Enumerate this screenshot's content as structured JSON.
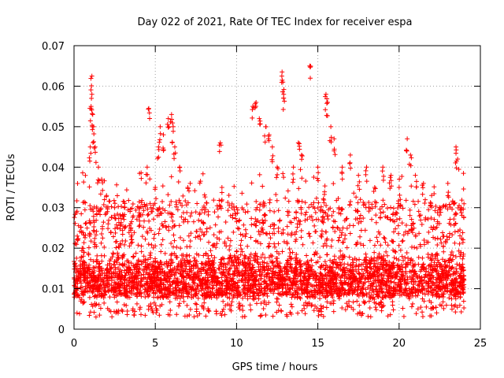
{
  "chart_data": {
    "type": "scatter",
    "title": "Day 022 of 2021, Rate Of TEC Index for receiver espa",
    "xlabel": "GPS time / hours",
    "ylabel": "ROTI / TECUs",
    "xlim": [
      0,
      25
    ],
    "ylim": [
      0,
      0.07
    ],
    "x_ticks": [
      0,
      5,
      10,
      15,
      20,
      25
    ],
    "x_tick_labels": [
      "0",
      "5",
      "10",
      "15",
      "20",
      "25"
    ],
    "y_ticks": [
      0,
      0.01,
      0.02,
      0.03,
      0.04,
      0.05,
      0.06,
      0.07
    ],
    "y_tick_labels": [
      "0",
      "0.01",
      "0.02",
      "0.03",
      "0.04",
      "0.05",
      "0.06",
      "0.07"
    ],
    "grid": true,
    "marker": "plus",
    "color": "#ff0000",
    "series": [
      {
        "name": "ROTI",
        "baseline": {
          "x_range": [
            0,
            24
          ],
          "y_typical": [
            0.005,
            0.02
          ]
        },
        "points": [
          {
            "x": 0.2,
            "y": 0.023
          },
          {
            "x": 0.5,
            "y": 0.02
          },
          {
            "x": 1.0,
            "y": 0.045
          },
          {
            "x": 1.05,
            "y": 0.055
          },
          {
            "x": 1.1,
            "y": 0.0625
          },
          {
            "x": 1.1,
            "y": 0.058
          },
          {
            "x": 1.15,
            "y": 0.053
          },
          {
            "x": 1.2,
            "y": 0.05
          },
          {
            "x": 1.3,
            "y": 0.045
          },
          {
            "x": 1.5,
            "y": 0.04
          },
          {
            "x": 1.7,
            "y": 0.037
          },
          {
            "x": 2.0,
            "y": 0.033
          },
          {
            "x": 2.5,
            "y": 0.03
          },
          {
            "x": 3.0,
            "y": 0.028
          },
          {
            "x": 3.5,
            "y": 0.025
          },
          {
            "x": 4.0,
            "y": 0.03
          },
          {
            "x": 4.5,
            "y": 0.04
          },
          {
            "x": 4.6,
            "y": 0.0545
          },
          {
            "x": 5.0,
            "y": 0.035
          },
          {
            "x": 5.2,
            "y": 0.045
          },
          {
            "x": 5.3,
            "y": 0.05
          },
          {
            "x": 5.5,
            "y": 0.048
          },
          {
            "x": 5.8,
            "y": 0.052
          },
          {
            "x": 6.0,
            "y": 0.053
          },
          {
            "x": 6.1,
            "y": 0.05
          },
          {
            "x": 6.2,
            "y": 0.045
          },
          {
            "x": 6.5,
            "y": 0.04
          },
          {
            "x": 7.0,
            "y": 0.035
          },
          {
            "x": 8.0,
            "y": 0.03
          },
          {
            "x": 9.0,
            "y": 0.046
          },
          {
            "x": 9.1,
            "y": 0.035
          },
          {
            "x": 10.0,
            "y": 0.03
          },
          {
            "x": 11.0,
            "y": 0.055
          },
          {
            "x": 11.2,
            "y": 0.056
          },
          {
            "x": 11.4,
            "y": 0.052
          },
          {
            "x": 11.8,
            "y": 0.05
          },
          {
            "x": 12.0,
            "y": 0.048
          },
          {
            "x": 12.2,
            "y": 0.045
          },
          {
            "x": 12.5,
            "y": 0.04
          },
          {
            "x": 12.8,
            "y": 0.0635
          },
          {
            "x": 12.85,
            "y": 0.061
          },
          {
            "x": 12.9,
            "y": 0.058
          },
          {
            "x": 13.5,
            "y": 0.04
          },
          {
            "x": 13.8,
            "y": 0.046
          },
          {
            "x": 14.0,
            "y": 0.043
          },
          {
            "x": 14.5,
            "y": 0.065
          },
          {
            "x": 15.0,
            "y": 0.04
          },
          {
            "x": 15.5,
            "y": 0.058
          },
          {
            "x": 15.6,
            "y": 0.056
          },
          {
            "x": 15.8,
            "y": 0.05
          },
          {
            "x": 16.0,
            "y": 0.047
          },
          {
            "x": 16.5,
            "y": 0.04
          },
          {
            "x": 17.0,
            "y": 0.043
          },
          {
            "x": 17.5,
            "y": 0.038
          },
          {
            "x": 18.0,
            "y": 0.04
          },
          {
            "x": 18.5,
            "y": 0.035
          },
          {
            "x": 19.0,
            "y": 0.04
          },
          {
            "x": 19.5,
            "y": 0.038
          },
          {
            "x": 20.0,
            "y": 0.035
          },
          {
            "x": 20.5,
            "y": 0.047
          },
          {
            "x": 20.7,
            "y": 0.043
          },
          {
            "x": 21.0,
            "y": 0.038
          },
          {
            "x": 21.5,
            "y": 0.036
          },
          {
            "x": 22.0,
            "y": 0.033
          },
          {
            "x": 22.5,
            "y": 0.03
          },
          {
            "x": 23.0,
            "y": 0.036
          },
          {
            "x": 23.5,
            "y": 0.045
          },
          {
            "x": 23.6,
            "y": 0.042
          },
          {
            "x": 23.8,
            "y": 0.03
          }
        ]
      }
    ]
  }
}
